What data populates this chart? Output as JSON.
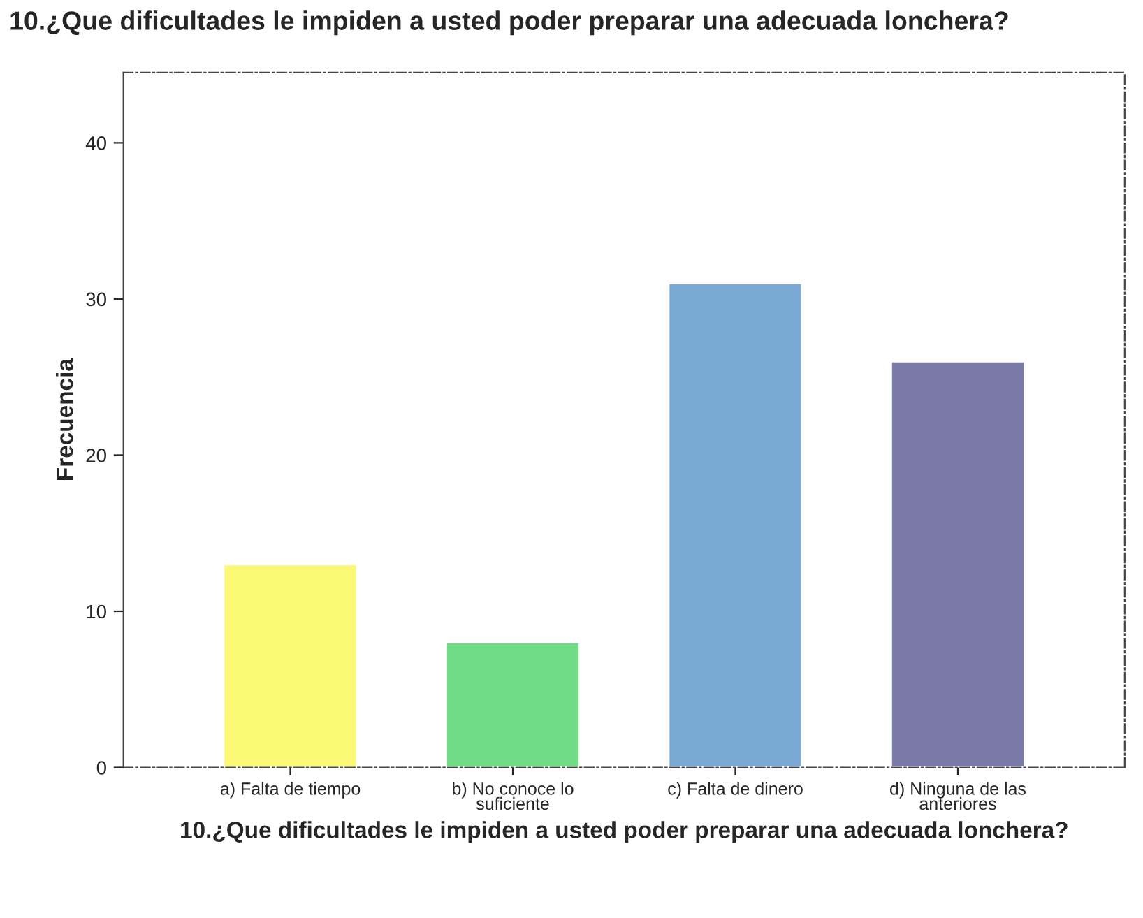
{
  "chart_data": {
    "type": "bar",
    "title": "10.¿Que dificultades le impiden a usted poder preparar una adecuada lonchera?",
    "xlabel": "10.¿Que dificultades le impiden a usted poder preparar una adecuada lonchera?",
    "ylabel": "Frecuencia",
    "categories": [
      "a) Falta de tiempo",
      "b) No conoce lo\nsuficiente",
      "c) Falta de dinero",
      "d) Ninguna de las\nanteriores"
    ],
    "values": [
      13,
      8,
      31,
      26
    ],
    "colors": [
      "#fbf876",
      "#6fdc85",
      "#7aa9d6",
      "#7a7aa8"
    ],
    "ylim": [
      0,
      44.5
    ],
    "yticks": [
      0,
      10,
      20,
      30,
      40
    ],
    "grid": false
  }
}
